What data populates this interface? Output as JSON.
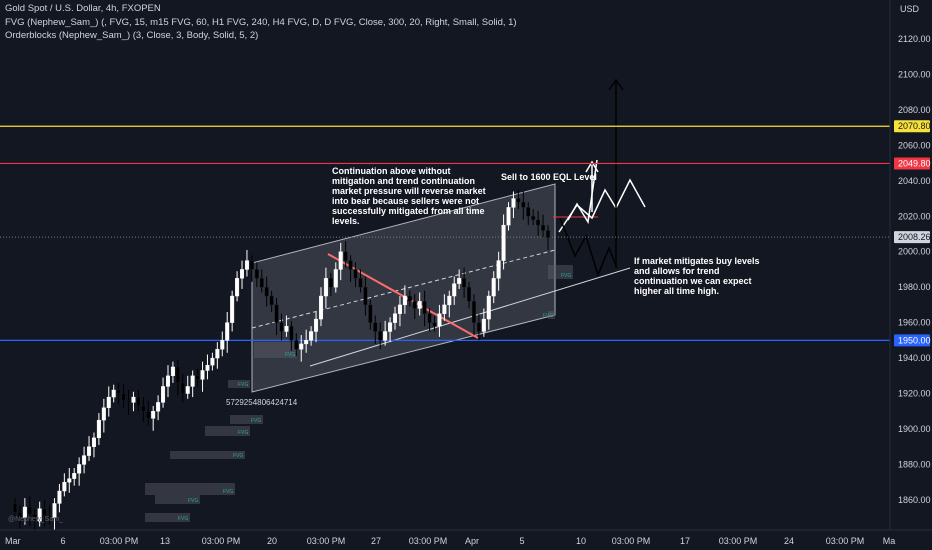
{
  "legend": {
    "title": "Gold Spot / U.S. Dollar, 4h, FXOPEN",
    "fvg": "FVG (Nephew_Sam_) (, FVG, 15, m15 FVG, 60, H1 FVG, 240, H4 FVG, D, D FVG, Close, 300, 20, Right, Small, Solid, 1)",
    "orderblocks": "Orderblocks (Nephew_Sam_) (3, Close, 3, Body, Solid, 5, 2)"
  },
  "watermark": "@Nephew_Sam_",
  "colors": {
    "background": "#131722",
    "bull": "#ffffff",
    "bear": "#000000",
    "yellow_level": "#f7e23a",
    "red_level": "#f23645",
    "blue_level": "#2962ff",
    "channel_fill": "#787b86",
    "trendline_red": "#ff6b6b"
  },
  "chart_data": {
    "type": "candlestick",
    "y_axis": {
      "currency": "USD",
      "ticks": [
        2120,
        2100,
        2080,
        2060,
        2040,
        2020,
        2000,
        1980,
        1960,
        1940,
        1920,
        1900,
        1880,
        1860
      ],
      "ylim": [
        1850,
        2130
      ]
    },
    "x_axis": {
      "ticks": [
        "Mar",
        "6",
        "03:00 PM",
        "13",
        "03:00 PM",
        "20",
        "03:00 PM",
        "27",
        "03:00 PM",
        "Apr",
        "5",
        "10",
        "03:00 PM",
        "17",
        "03:00 PM",
        "24",
        "03:00 PM",
        "Ma"
      ]
    },
    "price_tags": [
      {
        "value": "2070.80",
        "role": "level"
      },
      {
        "value": "2049.80",
        "role": "level"
      },
      {
        "value": "2008.26",
        "role": "last"
      },
      {
        "value": "1950.00",
        "role": "level"
      }
    ],
    "levels": [
      2070.8,
      2049.8,
      1950.0
    ],
    "last_price": 2008.26,
    "fvg_label": "FVG",
    "stray_number": "5729254806424714",
    "candle_closes": [
      1853,
      1850,
      1856,
      1852,
      1848,
      1855,
      1851,
      1850,
      1858,
      1865,
      1870,
      1872,
      1875,
      1880,
      1885,
      1890,
      1895,
      1905,
      1912,
      1918,
      1922,
      1920,
      1916,
      1915,
      1918,
      1913,
      1910,
      1906,
      1910,
      1915,
      1924,
      1930,
      1935,
      1926,
      1920,
      1924,
      1930,
      1928,
      1933,
      1936,
      1940,
      1945,
      1950,
      1960,
      1975,
      1985,
      1990,
      1995,
      1990,
      1985,
      1980,
      1975,
      1970,
      1960,
      1955,
      1958,
      1950,
      1945,
      1948,
      1950,
      1955,
      1962,
      1975,
      1985,
      1980,
      1990,
      2000,
      1995,
      1990,
      1985,
      1980,
      1970,
      1960,
      1955,
      1950,
      1955,
      1960,
      1965,
      1970,
      1975,
      1972,
      1968,
      1972,
      1965,
      1960,
      1958,
      1965,
      1970,
      1975,
      1982,
      1985,
      1980,
      1972,
      1960,
      1955,
      1962,
      1975,
      1985,
      1995,
      2015,
      2025,
      2030,
      2028,
      2025,
      2020,
      2018,
      2015,
      2012,
      2008
    ],
    "annotations": [
      "Continuation above without",
      "mitigation and trend continuation",
      "market pressure will reverse market",
      "into bear because sellers were not",
      "successfully mitigated from all time",
      "levels.",
      "Sell to 1600 EQL Level",
      "If market mitigates buy levels",
      "and allows for trend",
      "continuation we can expect",
      "higher all time high."
    ]
  }
}
